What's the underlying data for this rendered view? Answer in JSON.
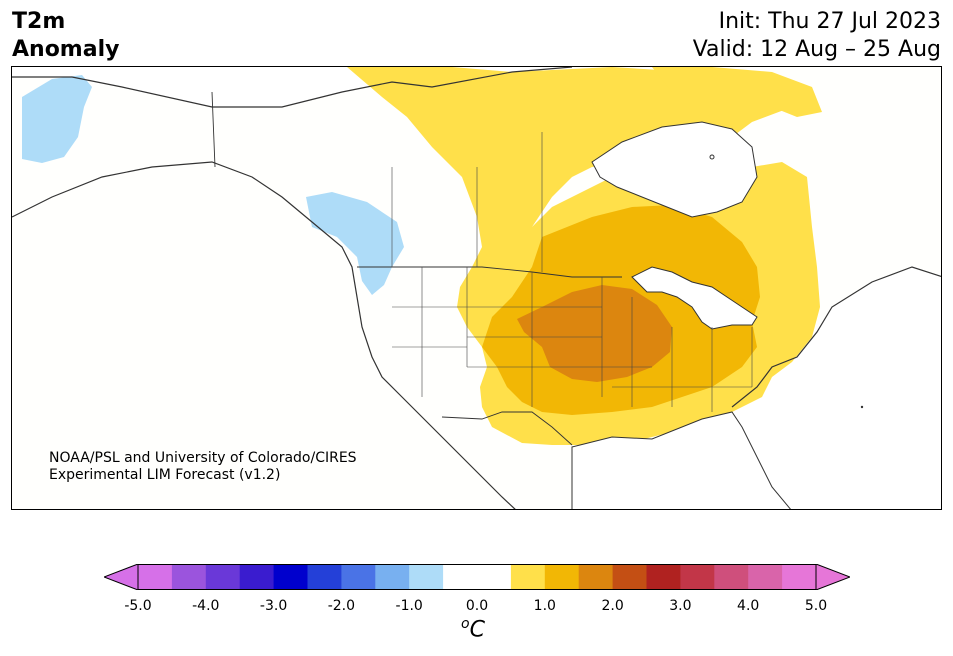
{
  "title": {
    "left_line1": "T2m",
    "left_line2": "Anomaly",
    "init": "Init: Thu 27 Jul 2023",
    "valid": "Valid: 12 Aug – 25 Aug"
  },
  "credit": {
    "line1": "NOAA/PSL and University of Colorado/CIRES",
    "line2": "Experimental LIM Forecast (v1.2)"
  },
  "colorbar": {
    "unit_sup": "o",
    "unit_base": "C",
    "ticks": [
      "-5.0",
      "-4.0",
      "-3.0",
      "-2.0",
      "-1.0",
      "0.0",
      "1.0",
      "2.0",
      "3.0",
      "4.0",
      "5.0"
    ],
    "colors": [
      "#d670e8",
      "#9b54dd",
      "#6a38d8",
      "#3a1ccf",
      "#0000cd",
      "#2440d8",
      "#4a73e6",
      "#78b0f0",
      "#aedcf8",
      "#ffffff",
      "#ffffff",
      "#ffe04a",
      "#f2b705",
      "#dc860f",
      "#c44f14",
      "#b02220",
      "#c23648",
      "#cf4f7c",
      "#d964aa",
      "#e676d8"
    ],
    "under_color": "#d670e8",
    "over_color": "#e676d8"
  },
  "map": {
    "region": "North America",
    "layers": [
      "coastlines",
      "country borders",
      "state/province borders",
      "temperature anomaly fill"
    ],
    "anomaly_colors": {
      "cool_-1": "#aedcf8",
      "warm_+0.5": "#ffe04a",
      "warm_+1": "#f2b705",
      "warm_+1.5": "#dc860f"
    }
  }
}
